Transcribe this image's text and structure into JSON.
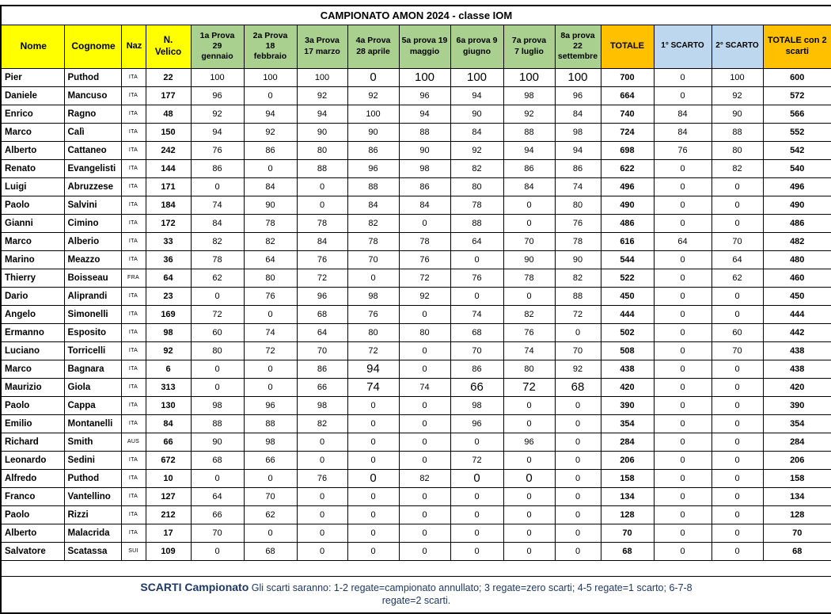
{
  "title": "CAMPIONATO AMON 2024 - classe IOM",
  "colors": {
    "header-yellow": "#FFFF00",
    "header-green": "#A9D08E",
    "header-orange": "#FFC000",
    "header-blue": "#BDD7EE",
    "footer-blue": "#1F3864",
    "grid": "#000000"
  },
  "columns": [
    {
      "key": "nome",
      "label": "Nome",
      "group": "info"
    },
    {
      "key": "cognome",
      "label": "Cognome",
      "group": "info"
    },
    {
      "key": "naz",
      "label": "Naz",
      "group": "info"
    },
    {
      "key": "velico",
      "label": "N.\nVelico",
      "group": "info"
    },
    {
      "key": "prova1",
      "label": "1a Prova\n29\ngennaio",
      "group": "prova"
    },
    {
      "key": "prova2",
      "label": "2a Prova\n18\nfebbraio",
      "group": "prova"
    },
    {
      "key": "prova3",
      "label": "3a Prova\n17 marzo",
      "group": "prova"
    },
    {
      "key": "prova4",
      "label": "4a Prova\n28 aprile",
      "group": "prova"
    },
    {
      "key": "prova5",
      "label": "5a prova 19\nmaggio",
      "group": "prova"
    },
    {
      "key": "prova6",
      "label": "6a prova 9\ngiugno",
      "group": "prova"
    },
    {
      "key": "prova7",
      "label": "7a prova\n7 luglio",
      "group": "prova"
    },
    {
      "key": "prova8",
      "label": "8a prova\n22\nsettembre",
      "group": "prova"
    },
    {
      "key": "totale",
      "label": "TOTALE",
      "group": "totale"
    },
    {
      "key": "scarto1",
      "label": "1° SCARTO",
      "group": "scarto"
    },
    {
      "key": "scarto2",
      "label": "2° SCARTO",
      "group": "scarto"
    },
    {
      "key": "totale2",
      "label": "TOTALE con 2\nscarti",
      "group": "totale"
    }
  ],
  "rows": [
    {
      "nome": "Pier",
      "cognome": "Puthod",
      "naz": "ITA",
      "velico": 22,
      "prove": [
        100,
        100,
        100,
        0,
        100,
        100,
        100,
        100
      ],
      "totale": 700,
      "scarto1": 0,
      "scarto2": 100,
      "totale2": 600,
      "large_prove": [
        3,
        4,
        5,
        6,
        7
      ]
    },
    {
      "nome": "Daniele",
      "cognome": "Mancuso",
      "naz": "ITA",
      "velico": 177,
      "prove": [
        96,
        0,
        92,
        92,
        96,
        94,
        98,
        96
      ],
      "totale": 664,
      "scarto1": 0,
      "scarto2": 92,
      "totale2": 572
    },
    {
      "nome": "Enrico",
      "cognome": "Ragno",
      "naz": "ITA",
      "velico": 48,
      "prove": [
        92,
        94,
        94,
        100,
        94,
        90,
        92,
        84
      ],
      "totale": 740,
      "scarto1": 84,
      "scarto2": 90,
      "totale2": 566
    },
    {
      "nome": "Marco",
      "cognome": "Calì",
      "naz": "ITA",
      "velico": 150,
      "prove": [
        94,
        92,
        90,
        90,
        88,
        84,
        88,
        98
      ],
      "totale": 724,
      "scarto1": 84,
      "scarto2": 88,
      "totale2": 552
    },
    {
      "nome": "Alberto",
      "cognome": "Cattaneo",
      "naz": "ITA",
      "velico": 242,
      "prove": [
        76,
        86,
        80,
        86,
        90,
        92,
        94,
        94
      ],
      "totale": 698,
      "scarto1": 76,
      "scarto2": 80,
      "totale2": 542
    },
    {
      "nome": "Renato",
      "cognome": "Evangelisti",
      "naz": "ITA",
      "velico": 144,
      "prove": [
        86,
        0,
        88,
        96,
        98,
        82,
        86,
        86
      ],
      "totale": 622,
      "scarto1": 0,
      "scarto2": 82,
      "totale2": 540
    },
    {
      "nome": "Luigi",
      "cognome": "Abruzzese",
      "naz": "ITA",
      "velico": 171,
      "prove": [
        0,
        84,
        0,
        88,
        86,
        80,
        84,
        74
      ],
      "totale": 496,
      "scarto1": 0,
      "scarto2": 0,
      "totale2": 496
    },
    {
      "nome": "Paolo",
      "cognome": "Salvini",
      "naz": "ITA",
      "velico": 184,
      "prove": [
        74,
        90,
        0,
        84,
        84,
        78,
        0,
        80
      ],
      "totale": 490,
      "scarto1": 0,
      "scarto2": 0,
      "totale2": 490
    },
    {
      "nome": "Gianni",
      "cognome": "Cimino",
      "naz": "ITA",
      "velico": 172,
      "prove": [
        84,
        78,
        78,
        82,
        0,
        88,
        0,
        76
      ],
      "totale": 486,
      "scarto1": 0,
      "scarto2": 0,
      "totale2": 486
    },
    {
      "nome": "Marco",
      "cognome": "Alberio",
      "naz": "ITA",
      "velico": 33,
      "prove": [
        82,
        82,
        84,
        78,
        78,
        64,
        70,
        78
      ],
      "totale": 616,
      "scarto1": 64,
      "scarto2": 70,
      "totale2": 482
    },
    {
      "nome": "Marino",
      "cognome": "Meazzo",
      "naz": "ITA",
      "velico": 36,
      "prove": [
        78,
        64,
        76,
        70,
        76,
        0,
        90,
        90
      ],
      "totale": 544,
      "scarto1": 0,
      "scarto2": 64,
      "totale2": 480
    },
    {
      "nome": "Thierry",
      "cognome": "Boisseau",
      "naz": "FRA",
      "velico": 64,
      "prove": [
        62,
        80,
        72,
        0,
        72,
        76,
        78,
        82
      ],
      "totale": 522,
      "scarto1": 0,
      "scarto2": 62,
      "totale2": 460
    },
    {
      "nome": "Dario",
      "cognome": "Aliprandi",
      "naz": "ITA",
      "velico": 23,
      "prove": [
        0,
        76,
        96,
        98,
        92,
        0,
        0,
        88
      ],
      "totale": 450,
      "scarto1": 0,
      "scarto2": 0,
      "totale2": 450
    },
    {
      "nome": "Angelo",
      "cognome": "Simonelli",
      "naz": "ITA",
      "velico": 169,
      "prove": [
        72,
        0,
        68,
        76,
        0,
        74,
        82,
        72
      ],
      "totale": 444,
      "scarto1": 0,
      "scarto2": 0,
      "totale2": 444
    },
    {
      "nome": "Ermanno",
      "cognome": "Esposito",
      "naz": "ITA",
      "velico": 98,
      "prove": [
        60,
        74,
        64,
        80,
        80,
        68,
        76,
        0
      ],
      "totale": 502,
      "scarto1": 0,
      "scarto2": 60,
      "totale2": 442
    },
    {
      "nome": "Luciano",
      "cognome": "Torricelli",
      "naz": "ITA",
      "velico": 92,
      "prove": [
        80,
        72,
        70,
        72,
        0,
        70,
        74,
        70
      ],
      "totale": 508,
      "scarto1": 0,
      "scarto2": 70,
      "totale2": 438
    },
    {
      "nome": "Marco",
      "cognome": "Bagnara",
      "naz": "ITA",
      "velico": 6,
      "prove": [
        0,
        0,
        86,
        94,
        0,
        86,
        80,
        92
      ],
      "totale": 438,
      "scarto1": 0,
      "scarto2": 0,
      "totale2": 438,
      "large_prove": [
        3
      ]
    },
    {
      "nome": "Maurizio",
      "cognome": "Giola",
      "naz": "ITA",
      "velico": 313,
      "prove": [
        0,
        0,
        66,
        74,
        74,
        66,
        72,
        68
      ],
      "totale": 420,
      "scarto1": 0,
      "scarto2": 0,
      "totale2": 420,
      "large_prove": [
        3,
        5,
        6,
        7
      ]
    },
    {
      "nome": "Paolo",
      "cognome": "Cappa",
      "naz": "ITA",
      "velico": 130,
      "prove": [
        98,
        96,
        98,
        0,
        0,
        98,
        0,
        0
      ],
      "totale": 390,
      "scarto1": 0,
      "scarto2": 0,
      "totale2": 390
    },
    {
      "nome": "Emilio",
      "cognome": "Montanelli",
      "naz": "ITA",
      "velico": 84,
      "prove": [
        88,
        88,
        82,
        0,
        0,
        96,
        0,
        0
      ],
      "totale": 354,
      "scarto1": 0,
      "scarto2": 0,
      "totale2": 354
    },
    {
      "nome": "Richard",
      "cognome": "Smith",
      "naz": "AUS",
      "velico": 66,
      "prove": [
        90,
        98,
        0,
        0,
        0,
        0,
        96,
        0
      ],
      "totale": 284,
      "scarto1": 0,
      "scarto2": 0,
      "totale2": 284
    },
    {
      "nome": "Leonardo",
      "cognome": "Sedini",
      "naz": "ITA",
      "velico": 672,
      "prove": [
        68,
        66,
        0,
        0,
        0,
        72,
        0,
        0
      ],
      "totale": 206,
      "scarto1": 0,
      "scarto2": 0,
      "totale2": 206
    },
    {
      "nome": "Alfredo",
      "cognome": "Puthod",
      "naz": "ITA",
      "velico": 10,
      "prove": [
        0,
        0,
        76,
        0,
        82,
        0,
        0,
        0
      ],
      "totale": 158,
      "scarto1": 0,
      "scarto2": 0,
      "totale2": 158,
      "large_prove": [
        3,
        5,
        6
      ]
    },
    {
      "nome": "Franco",
      "cognome": "Vantellino",
      "naz": "ITA",
      "velico": 127,
      "prove": [
        64,
        70,
        0,
        0,
        0,
        0,
        0,
        0
      ],
      "totale": 134,
      "scarto1": 0,
      "scarto2": 0,
      "totale2": 134
    },
    {
      "nome": "Paolo",
      "cognome": "Rizzi",
      "naz": "ITA",
      "velico": 212,
      "prove": [
        66,
        62,
        0,
        0,
        0,
        0,
        0,
        0
      ],
      "totale": 128,
      "scarto1": 0,
      "scarto2": 0,
      "totale2": 128
    },
    {
      "nome": "Alberto",
      "cognome": "Malacrida",
      "naz": "ITA",
      "velico": 17,
      "prove": [
        70,
        0,
        0,
        0,
        0,
        0,
        0,
        0
      ],
      "totale": 70,
      "scarto1": 0,
      "scarto2": 0,
      "totale2": 70
    },
    {
      "nome": "Salvatore",
      "cognome": "Scatassa",
      "naz": "SUI",
      "velico": 109,
      "prove": [
        0,
        68,
        0,
        0,
        0,
        0,
        0,
        0
      ],
      "totale": 68,
      "scarto1": 0,
      "scarto2": 0,
      "totale2": 68
    }
  ],
  "footer": {
    "bold": "SCARTI Campionato",
    "text": " Gli scarti saranno: 1-2 regate=campionato annullato; 3 regate=zero scarti; 4-5 regate=1 scarto; 6-7-8 regate=2 scarti."
  }
}
